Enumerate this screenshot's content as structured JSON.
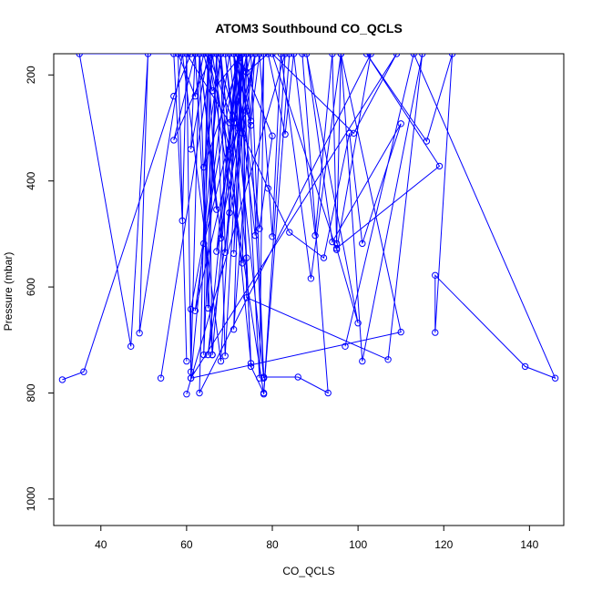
{
  "chart_data": {
    "type": "line",
    "title": "ATOM3 Southbound CO_QCLS",
    "xlabel": "CO_QCLS",
    "ylabel": "Pressure (mbar)",
    "xlim": [
      29,
      148
    ],
    "ylim": [
      1050,
      160
    ],
    "y_reversed": true,
    "x_ticks": [
      40,
      60,
      80,
      100,
      120,
      140
    ],
    "y_ticks": [
      200,
      400,
      600,
      800,
      1000
    ],
    "grid": false,
    "legend": "none",
    "series_color": "#0000ff",
    "marker": "open-circle",
    "series": [
      {
        "x": [
          31,
          36,
          57,
          61,
          35,
          47,
          51,
          49,
          59,
          68,
          72,
          66,
          62,
          74,
          78,
          86,
          93,
          87,
          84,
          78,
          75,
          74,
          69,
          71,
          73,
          66,
          64,
          62,
          58,
          60
        ],
        "y": [
          775,
          760,
          240,
          160,
          160,
          712,
          160,
          687,
          160,
          740,
          160,
          728,
          160,
          160,
          770,
          770,
          800,
          160,
          160,
          800,
          750,
          545,
          160,
          290,
          160,
          230,
          160,
          240,
          160,
          740
        ]
      },
      {
        "x": [
          97,
          113,
          146,
          139,
          118,
          118,
          122,
          116,
          102,
          119,
          95,
          100,
          88,
          94,
          110,
          101,
          98,
          92,
          84,
          79,
          73,
          72,
          80,
          77,
          71,
          75,
          74,
          70,
          65,
          66
        ],
        "y": [
          712,
          160,
          772,
          750,
          578,
          686,
          160,
          325,
          160,
          372,
          527,
          668,
          160,
          515,
          292,
          518,
          310,
          545,
          497,
          414,
          310,
          160,
          315,
          490,
          160,
          295,
          268,
          340,
          160,
          728
        ]
      },
      {
        "x": [
          54,
          66,
          57,
          62,
          61,
          65,
          67,
          63,
          68,
          73,
          64,
          68,
          70,
          72,
          74,
          79,
          83,
          85,
          90,
          94,
          95,
          96,
          89,
          82,
          80,
          77,
          75,
          72,
          70,
          60
        ],
        "y": [
          772,
          160,
          323,
          160,
          340,
          160,
          454,
          160,
          508,
          160,
          374,
          160,
          460,
          160,
          195,
          160,
          312,
          160,
          503,
          160,
          518,
          160,
          584,
          160,
          505,
          160,
          287,
          160,
          290,
          160
        ]
      },
      {
        "x": [
          60,
          83,
          78,
          66,
          64,
          75,
          78,
          70,
          62,
          76,
          65,
          72,
          67,
          76,
          71,
          73,
          71,
          74,
          73,
          65,
          64,
          67,
          72,
          71,
          76,
          78,
          77,
          73,
          69,
          68
        ],
        "y": [
          802,
          160,
          802,
          160,
          518,
          160,
          772,
          160,
          645,
          160,
          728,
          160,
          533,
          160,
          680,
          160,
          537,
          160,
          555,
          160,
          728,
          160,
          300,
          160,
          503,
          160,
          772,
          160,
          535,
          160
        ]
      },
      {
        "x": [
          57,
          59,
          60,
          61,
          63,
          65,
          67,
          69,
          73,
          74,
          107,
          115,
          101,
          96,
          110,
          61,
          68,
          75,
          72,
          61,
          61,
          109,
          99,
          80,
          95,
          103,
          63,
          65,
          71,
          74
        ],
        "y": [
          160,
          475,
          160,
          760,
          160,
          640,
          160,
          730,
          160,
          620,
          737,
          160,
          740,
          160,
          685,
          772,
          160,
          744,
          160,
          642,
          772,
          160,
          310,
          160,
          530,
          160,
          800,
          160,
          291,
          160
        ]
      }
    ]
  }
}
